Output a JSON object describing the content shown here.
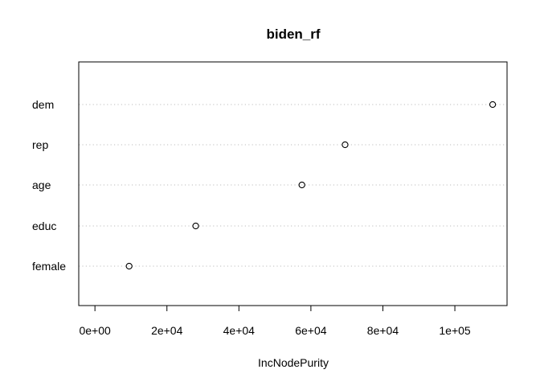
{
  "chart_data": {
    "type": "scatter",
    "subtype": "dotchart",
    "title": "biden_rf",
    "xlabel": "IncNodePurity",
    "ylabel": "",
    "categories": [
      "dem",
      "rep",
      "age",
      "educ",
      "female"
    ],
    "values": [
      110500,
      69500,
      57500,
      28000,
      9500
    ],
    "xlim": [
      -4500,
      114500
    ],
    "x_ticks": [
      0,
      20000,
      40000,
      60000,
      80000,
      100000
    ],
    "x_tick_labels": [
      "0e+00",
      "2e+04",
      "4e+04",
      "6e+04",
      "8e+04",
      "1e+05"
    ],
    "grid": "dotted guide lines per category",
    "legend": "none"
  },
  "colors": {
    "background": "#ffffff",
    "axis": "#000000",
    "guide_lines": "#bebebe",
    "points": "#000000"
  }
}
